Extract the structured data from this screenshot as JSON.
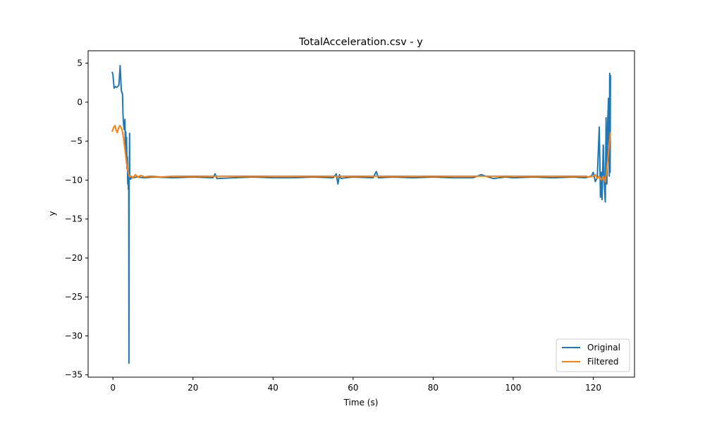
{
  "chart_data": {
    "type": "line",
    "title": "TotalAcceleration.csv - y",
    "xlabel": "Time (s)",
    "ylabel": "y",
    "xlim": [
      -6.2,
      130.3
    ],
    "ylim": [
      -35.3,
      6.6
    ],
    "xticks": [
      0,
      20,
      40,
      60,
      80,
      100,
      120
    ],
    "xtick_labels": [
      "0",
      "20",
      "40",
      "60",
      "80",
      "100",
      "120"
    ],
    "yticks": [
      5,
      0,
      -5,
      -10,
      -15,
      -20,
      -25,
      -30,
      -35
    ],
    "ytick_labels": [
      "5",
      "0",
      "−5",
      "−10",
      "−15",
      "−20",
      "−25",
      "−30",
      "−35"
    ],
    "grid": false,
    "legend": "lower-right",
    "series": [
      {
        "name": "Original",
        "color": "#1f77b4",
        "x": [
          -0.2,
          0.0,
          0.3,
          0.6,
          0.9,
          1.2,
          1.5,
          1.8,
          2.1,
          2.4,
          2.5,
          2.6,
          2.8,
          3.0,
          3.1,
          3.2,
          3.3,
          3.4,
          3.5,
          3.6,
          3.7,
          3.8,
          3.85,
          3.9,
          3.95,
          4.0,
          4.05,
          4.1,
          4.15,
          4.2,
          4.3,
          4.4,
          4.6,
          5.0,
          6.0,
          8.0,
          10.0,
          15.0,
          20.0,
          25.0,
          25.5,
          26.0,
          30.0,
          35.0,
          40.0,
          45.0,
          50.0,
          55.0,
          55.8,
          56.2,
          56.6,
          57.0,
          58.0,
          60.0,
          65.0,
          65.8,
          66.3,
          70.0,
          75.0,
          80.0,
          85.0,
          90.0,
          92.0,
          95.0,
          98.0,
          100.0,
          105.0,
          110.0,
          115.0,
          118.0,
          119.5,
          120.0,
          120.5,
          121.0,
          121.5,
          121.8,
          122.0,
          122.2,
          122.5,
          122.8,
          123.0,
          123.2,
          123.4,
          123.6,
          123.8,
          124.0,
          124.1,
          124.2,
          124.3
        ],
        "y": [
          3.9,
          3.5,
          1.8,
          2.0,
          1.9,
          2.0,
          2.2,
          4.7,
          1.5,
          1.0,
          -1.5,
          -2.5,
          -3.5,
          -2.2,
          -5.5,
          -3.8,
          -6.5,
          -4.5,
          -8.5,
          -7.0,
          -10.5,
          -9.0,
          -11.2,
          -9.5,
          -10.8,
          -33.5,
          -9.5,
          -8.0,
          -4.0,
          -9.8,
          -9.6,
          -9.9,
          -9.7,
          -9.7,
          -9.6,
          -9.7,
          -9.6,
          -9.7,
          -9.6,
          -9.7,
          -9.2,
          -9.8,
          -9.7,
          -9.6,
          -9.7,
          -9.7,
          -9.6,
          -9.7,
          -9.2,
          -10.5,
          -9.3,
          -9.8,
          -9.7,
          -9.6,
          -9.7,
          -8.9,
          -9.7,
          -9.6,
          -9.7,
          -9.6,
          -9.7,
          -9.7,
          -9.3,
          -9.8,
          -9.6,
          -9.7,
          -9.6,
          -9.7,
          -9.6,
          -9.7,
          -9.5,
          -9.0,
          -10.2,
          -9.7,
          -3.2,
          -12.2,
          -9.0,
          -12.5,
          -5.5,
          -11.0,
          -12.8,
          -2.0,
          -10.5,
          -2.5,
          0.5,
          -9.5,
          3.7,
          -9.0,
          3.5
        ]
      },
      {
        "name": "Filtered",
        "color": "#ff7f0e",
        "x": [
          -0.2,
          0.2,
          0.5,
          0.8,
          1.1,
          1.4,
          1.7,
          2.0,
          2.3,
          2.6,
          3.0,
          3.4,
          3.8,
          4.2,
          4.6,
          5.0,
          5.6,
          6.3,
          7.0,
          8.0,
          9.0,
          10.0,
          12.0,
          15.0,
          20.0,
          30.0,
          40.0,
          50.0,
          60.0,
          70.0,
          80.0,
          90.0,
          100.0,
          110.0,
          115.0,
          118.0,
          119.0,
          120.0,
          120.5,
          121.0,
          121.5,
          122.0,
          122.5,
          123.0,
          123.4,
          123.7,
          124.0,
          124.3
        ],
        "y": [
          -3.8,
          -3.2,
          -3.0,
          -3.6,
          -3.9,
          -3.3,
          -3.0,
          -3.2,
          -3.6,
          -4.5,
          -6.0,
          -7.8,
          -9.0,
          -9.6,
          -9.5,
          -9.7,
          -9.3,
          -9.6,
          -9.4,
          -9.6,
          -9.5,
          -9.5,
          -9.6,
          -9.5,
          -9.5,
          -9.5,
          -9.5,
          -9.5,
          -9.5,
          -9.5,
          -9.5,
          -9.5,
          -9.5,
          -9.5,
          -9.5,
          -9.5,
          -9.6,
          -9.5,
          -9.3,
          -9.8,
          -9.5,
          -10.0,
          -9.5,
          -10.2,
          -8.5,
          -7.0,
          -5.5,
          -3.8
        ]
      }
    ]
  }
}
